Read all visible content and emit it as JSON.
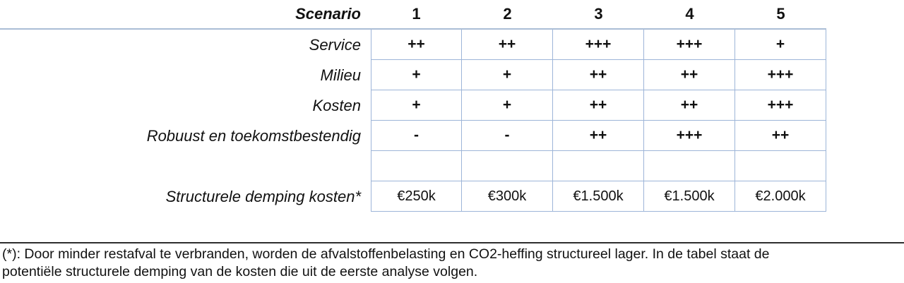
{
  "table": {
    "header_label": "Scenario",
    "columns": [
      "1",
      "2",
      "3",
      "4",
      "5"
    ],
    "rows": [
      {
        "label": "Service",
        "style": "rating",
        "values": [
          "++",
          "++",
          "+++",
          "+++",
          "+"
        ]
      },
      {
        "label": "Milieu",
        "style": "rating",
        "values": [
          "+",
          "+",
          "++",
          "++",
          "+++"
        ]
      },
      {
        "label": "Kosten",
        "style": "rating",
        "values": [
          "+",
          "+",
          "++",
          "++",
          "+++"
        ]
      },
      {
        "label": "Robuust en toekomstbestendig",
        "style": "rating",
        "values": [
          "-",
          "-",
          "++",
          "+++",
          "++"
        ]
      },
      {
        "label": "",
        "style": "empty",
        "values": [
          "",
          "",
          "",
          "",
          ""
        ]
      },
      {
        "label": "Structurele demping kosten*",
        "style": "currency",
        "values": [
          "€250k",
          "€300k",
          "€1.500k",
          "€1.500k",
          "€2.000k"
        ]
      }
    ]
  },
  "footnote": {
    "line1": "(*): Door minder restafval te verbranden, worden de afvalstoffenbelasting en CO2-heffing structureel lager. In de tabel staat de",
    "line2": "potentiële structurele demping van de kosten die uit de eerste analyse volgen."
  },
  "colors": {
    "cell_border": "#9db5d8",
    "header_rule": "#aabdd6",
    "footnote_rule": "#2e2e2e",
    "text": "#111111"
  }
}
